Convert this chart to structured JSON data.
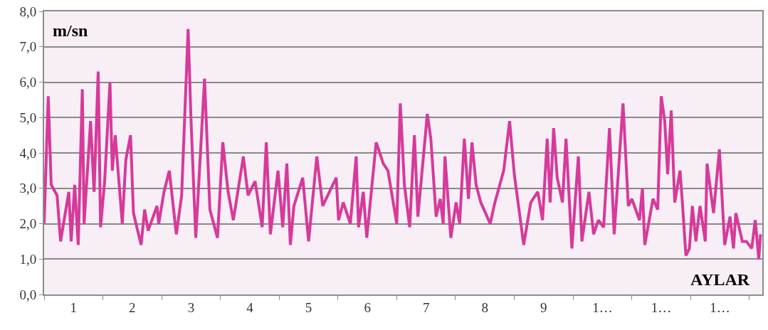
{
  "chart_data": {
    "type": "line",
    "xlabel": "AYLAR",
    "ylabel": "m/sn",
    "x": [
      0.0,
      0.07,
      0.12,
      0.22,
      0.28,
      0.42,
      0.46,
      0.52,
      0.58,
      0.65,
      0.68,
      0.79,
      0.85,
      0.92,
      0.96,
      1.03,
      1.12,
      1.16,
      1.21,
      1.33,
      1.39,
      1.47,
      1.52,
      1.65,
      1.71,
      1.77,
      1.92,
      1.95,
      2.04,
      2.13,
      2.25,
      2.34,
      2.45,
      2.5,
      2.58,
      2.73,
      2.82,
      2.95,
      3.04,
      3.13,
      3.22,
      3.39,
      3.47,
      3.59,
      3.71,
      3.78,
      3.85,
      3.98,
      4.06,
      4.13,
      4.19,
      4.25,
      4.4,
      4.5,
      4.64,
      4.74,
      4.97,
      5.01,
      5.09,
      5.21,
      5.31,
      5.35,
      5.43,
      5.49,
      5.65,
      5.77,
      5.85,
      6.0,
      6.06,
      6.13,
      6.22,
      6.3,
      6.36,
      6.52,
      6.58,
      6.67,
      6.74,
      6.79,
      6.82,
      6.92,
      7.01,
      7.07,
      7.15,
      7.22,
      7.28,
      7.35,
      7.43,
      7.59,
      7.67,
      7.82,
      7.92,
      8.0,
      8.16,
      8.28,
      8.4,
      8.48,
      8.56,
      8.61,
      8.67,
      8.73,
      8.82,
      8.88,
      8.98,
      9.09,
      9.15,
      9.27,
      9.35,
      9.43,
      9.52,
      9.62,
      9.7,
      9.85,
      9.94,
      10.0,
      10.13,
      10.18,
      10.22,
      10.36,
      10.44,
      10.5,
      10.56,
      10.61,
      10.67,
      10.73,
      10.82,
      10.86,
      10.92,
      10.98,
      11.03,
      11.09,
      11.16,
      11.25,
      11.28,
      11.39,
      11.49,
      11.58,
      11.67,
      11.73,
      11.77,
      11.88,
      11.95,
      12.04,
      12.1,
      12.16,
      12.19
    ],
    "series": [
      {
        "color": "#d63a9a",
        "values": [
          2.0,
          5.6,
          3.1,
          2.8,
          1.5,
          2.9,
          1.5,
          3.1,
          1.4,
          5.8,
          2.0,
          4.9,
          2.9,
          6.3,
          1.9,
          3.2,
          6.0,
          3.5,
          4.5,
          2.0,
          3.8,
          4.5,
          2.3,
          1.4,
          2.4,
          1.8,
          2.5,
          2.0,
          2.9,
          3.5,
          1.7,
          2.8,
          7.5,
          4.9,
          1.6,
          6.1,
          2.4,
          1.6,
          4.3,
          2.9,
          2.1,
          3.9,
          2.8,
          3.2,
          1.9,
          4.3,
          1.7,
          3.5,
          1.9,
          3.7,
          1.4,
          2.5,
          3.3,
          1.5,
          3.9,
          2.5,
          3.3,
          2.1,
          2.6,
          2.0,
          3.9,
          1.9,
          2.9,
          1.6,
          4.3,
          3.7,
          3.5,
          2.0,
          5.4,
          3.1,
          1.9,
          4.5,
          2.2,
          5.1,
          4.4,
          2.2,
          2.7,
          2.0,
          3.9,
          1.6,
          2.6,
          2.0,
          4.4,
          2.7,
          4.3,
          3.1,
          2.6,
          2.0,
          2.6,
          3.5,
          4.9,
          3.4,
          1.4,
          2.6,
          2.9,
          2.1,
          4.4,
          2.6,
          4.7,
          3.3,
          2.6,
          4.4,
          1.3,
          3.9,
          1.5,
          2.9,
          1.7,
          2.1,
          1.9,
          4.7,
          1.7,
          5.4,
          2.5,
          2.7,
          2.1,
          3.0,
          1.4,
          2.7,
          2.4,
          5.6,
          4.9,
          3.4,
          5.2,
          2.6,
          3.5,
          2.6,
          1.1,
          1.3,
          2.5,
          1.5,
          2.5,
          1.5,
          3.7,
          2.3,
          4.1,
          1.4,
          2.2,
          1.3,
          2.3,
          1.5,
          1.5,
          1.3,
          2.1,
          1.0,
          1.7
        ]
      }
    ],
    "xlim": [
      0,
      12.22
    ],
    "xticks": [
      {
        "value": 0,
        "label": null
      },
      {
        "value": 0.5,
        "label": "1"
      },
      {
        "value": 1,
        "label": null
      },
      {
        "value": 1.5,
        "label": "2"
      },
      {
        "value": 2,
        "label": null
      },
      {
        "value": 2.5,
        "label": "3"
      },
      {
        "value": 3,
        "label": null
      },
      {
        "value": 3.5,
        "label": "4"
      },
      {
        "value": 4,
        "label": null
      },
      {
        "value": 4.5,
        "label": "5"
      },
      {
        "value": 5,
        "label": null
      },
      {
        "value": 5.5,
        "label": "6"
      },
      {
        "value": 6,
        "label": null
      },
      {
        "value": 6.5,
        "label": "7"
      },
      {
        "value": 7,
        "label": null
      },
      {
        "value": 7.5,
        "label": "8"
      },
      {
        "value": 8,
        "label": null
      },
      {
        "value": 8.5,
        "label": "9"
      },
      {
        "value": 9,
        "label": null
      },
      {
        "value": 9.5,
        "label": "1…"
      },
      {
        "value": 10,
        "label": null
      },
      {
        "value": 10.5,
        "label": "1…"
      },
      {
        "value": 11,
        "label": null
      },
      {
        "value": 11.5,
        "label": "1…"
      },
      {
        "value": 12,
        "label": null
      }
    ],
    "ylim": [
      0,
      8
    ],
    "yticks": [
      {
        "value": 0,
        "label": "0,0"
      },
      {
        "value": 1,
        "label": "1,0"
      },
      {
        "value": 2,
        "label": "2,0"
      },
      {
        "value": 3,
        "label": "3,0"
      },
      {
        "value": 4,
        "label": "4,0"
      },
      {
        "value": 5,
        "label": "5,0"
      },
      {
        "value": 6,
        "label": "6,0"
      },
      {
        "value": 7,
        "label": "7,0"
      },
      {
        "value": 8,
        "label": "8,0"
      }
    ],
    "grid": "y",
    "line_style": "solid"
  }
}
